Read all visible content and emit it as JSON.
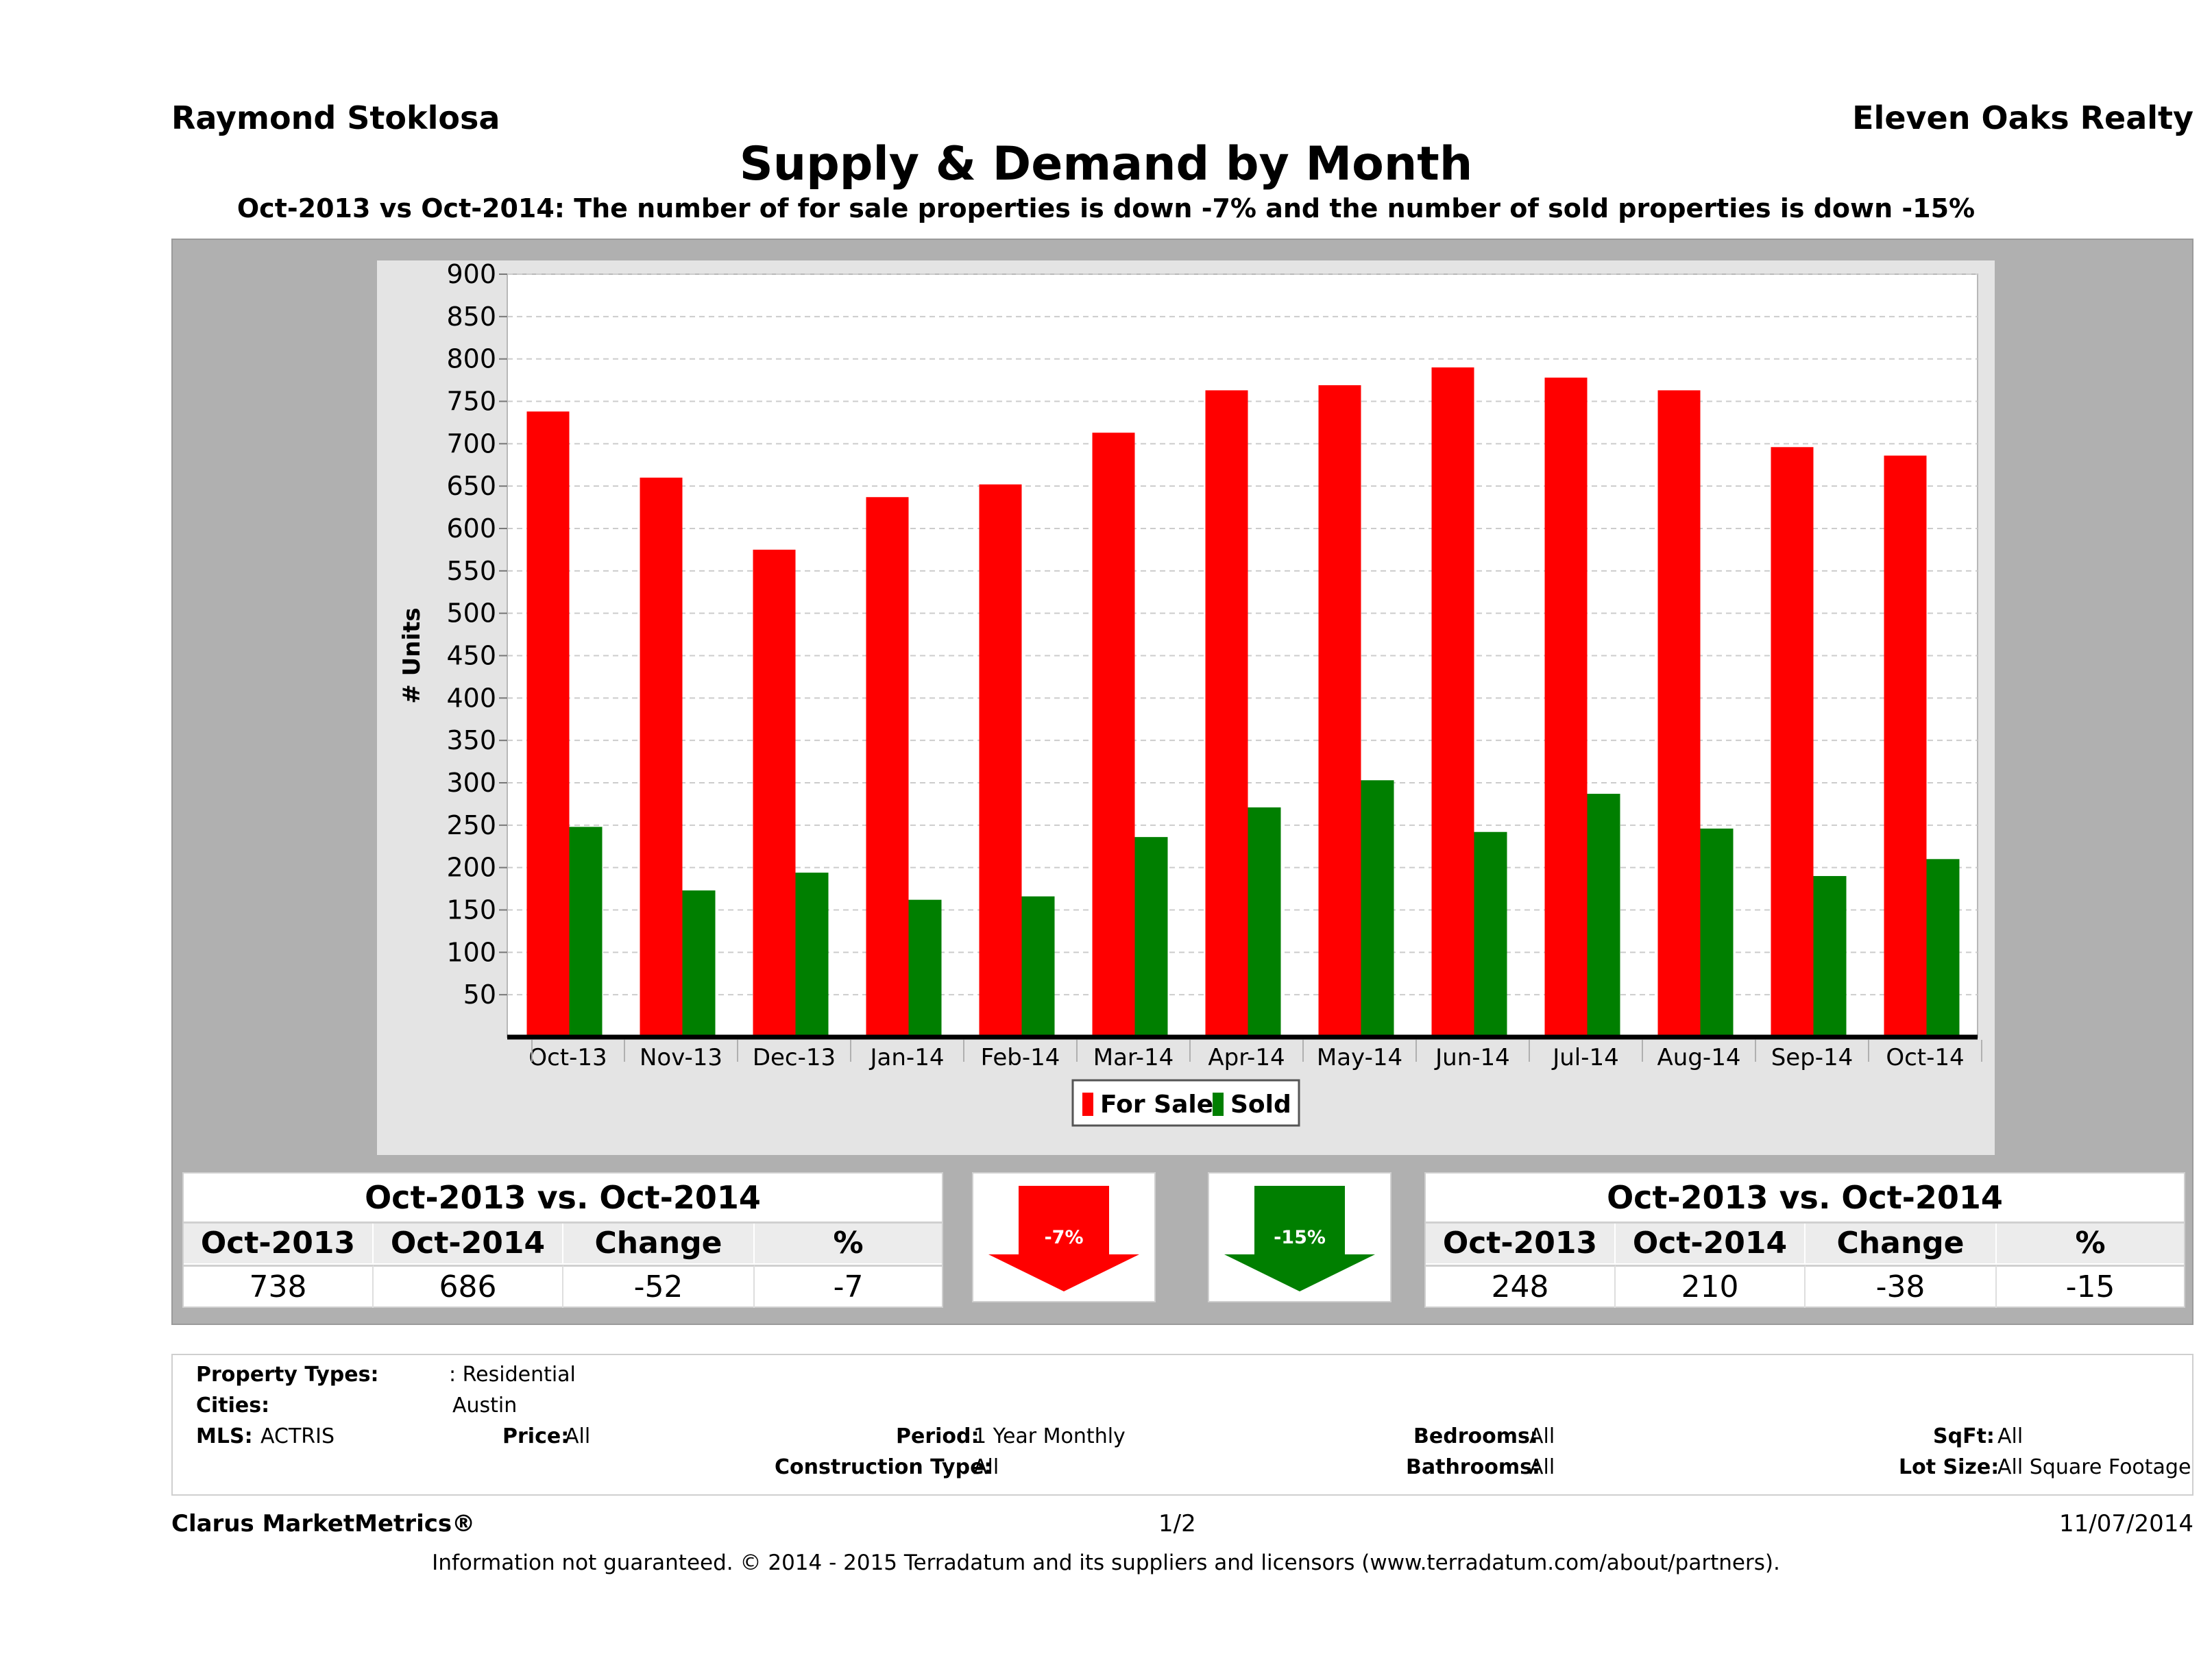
{
  "header": {
    "agent_name": "Raymond Stoklosa",
    "company": "Eleven Oaks Realty",
    "title": "Supply & Demand by Month",
    "subtitle": "Oct-2013 vs Oct-2014: The number of for sale properties is down -7% and the number of sold properties is down -15%"
  },
  "chart_data": {
    "type": "bar",
    "ylabel": "# Units",
    "xlabel": "",
    "ylim": [
      0,
      900
    ],
    "yticks": [
      50,
      100,
      150,
      200,
      250,
      300,
      350,
      400,
      450,
      500,
      550,
      600,
      650,
      700,
      750,
      800,
      850,
      900
    ],
    "categories": [
      "Oct-13",
      "Nov-13",
      "Dec-13",
      "Jan-14",
      "Feb-14",
      "Mar-14",
      "Apr-14",
      "May-14",
      "Jun-14",
      "Jul-14",
      "Aug-14",
      "Sep-14",
      "Oct-14"
    ],
    "series": [
      {
        "name": "For Sale",
        "color": "#ff0000",
        "values": [
          738,
          660,
          575,
          637,
          652,
          713,
          763,
          769,
          790,
          778,
          763,
          696,
          686
        ]
      },
      {
        "name": "Sold",
        "color": "#007f00",
        "values": [
          248,
          173,
          194,
          162,
          166,
          236,
          271,
          303,
          242,
          287,
          246,
          190,
          210
        ]
      }
    ],
    "legend_position": "bottom-center",
    "grid": true
  },
  "for_sale_stats": {
    "title": "Oct-2013 vs. Oct-2014",
    "headers": [
      "Oct-2013",
      "Oct-2014",
      "Change",
      "%"
    ],
    "values": [
      "738",
      "686",
      "-52",
      "-7"
    ]
  },
  "for_sale_arrow": {
    "label": "-7%",
    "color": "#ff0000",
    "direction": "down"
  },
  "sold_arrow": {
    "label": "-15%",
    "color": "#007f00",
    "direction": "down"
  },
  "sold_stats": {
    "title": "Oct-2013 vs. Oct-2014",
    "headers": [
      "Oct-2013",
      "Oct-2014",
      "Change",
      "%"
    ],
    "values": [
      "248",
      "210",
      "-38",
      "-15"
    ]
  },
  "criteria": {
    "property_types_label": "Property Types:",
    "property_types_value": ": Residential",
    "cities_label": "Cities:",
    "cities_value": "Austin",
    "mls_label": "MLS:",
    "mls_value": "ACTRIS",
    "price_label": "Price:",
    "price_value": "All",
    "period_label": "Period:",
    "period_value": "1 Year Monthly",
    "bedrooms_label": "Bedrooms:",
    "bedrooms_value": "All",
    "sqft_label": "SqFt:",
    "sqft_value": "All",
    "construction_label": "Construction Type:",
    "construction_value": "All",
    "bathrooms_label": "Bathrooms:",
    "bathrooms_value": "All",
    "lotsize_label": "Lot Size:",
    "lotsize_value": "All Square Footage"
  },
  "footer": {
    "brand": "Clarus MarketMetrics®",
    "page": "1/2",
    "date": "11/07/2014",
    "disclaimer": "Information not guaranteed. © 2014 - 2015 Terradatum and its suppliers and licensors (www.terradatum.com/about/partners)."
  }
}
